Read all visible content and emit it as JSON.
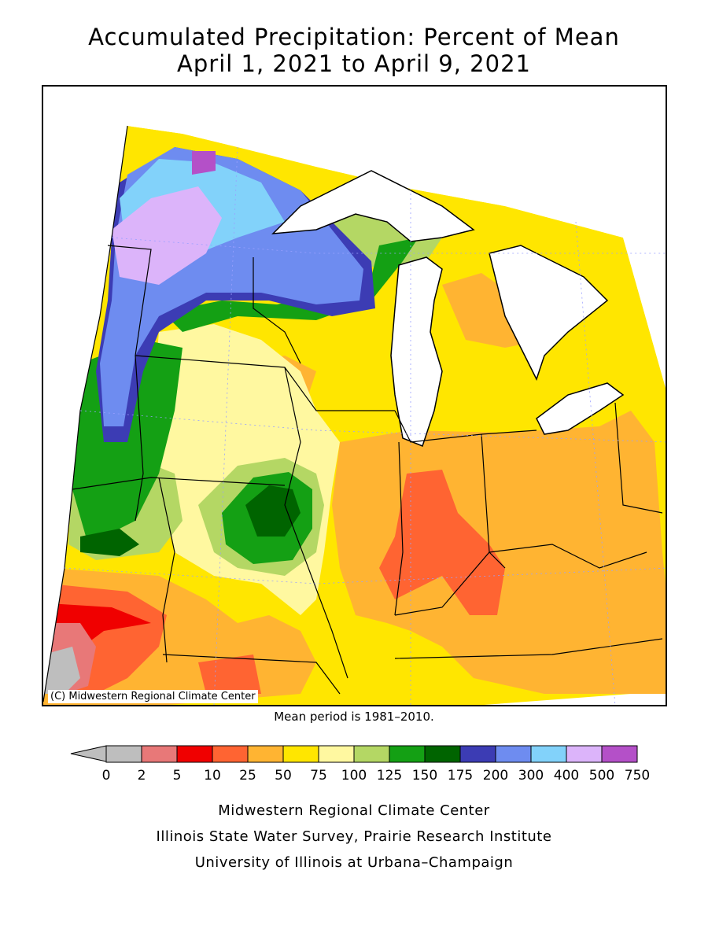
{
  "title_line1": "Accumulated Precipitation: Percent of Mean",
  "title_line2": "April 1, 2021 to April 9, 2021",
  "copyright": "(C) Midwestern Regional Climate Center",
  "mean_note": "Mean period is 1981–2010.",
  "legend": {
    "labels": [
      "0",
      "2",
      "5",
      "10",
      "25",
      "50",
      "75",
      "100",
      "125",
      "150",
      "175",
      "200",
      "300",
      "400",
      "500",
      "750"
    ],
    "colors": [
      "#bebebe",
      "#e87878",
      "#f00000",
      "#ff6432",
      "#ffb432",
      "#ffe600",
      "#fff8a0",
      "#b4d764",
      "#14a014",
      "#006400",
      "#3c3cb4",
      "#6e8cf0",
      "#82d2fa",
      "#dcb4fa",
      "#b450c8"
    ]
  },
  "footer": {
    "line1": "Midwestern Regional Climate Center",
    "line2": "Illinois State Water Survey, Prairie Research Institute",
    "line3": "University of Illinois at Urbana–Champaign"
  }
}
